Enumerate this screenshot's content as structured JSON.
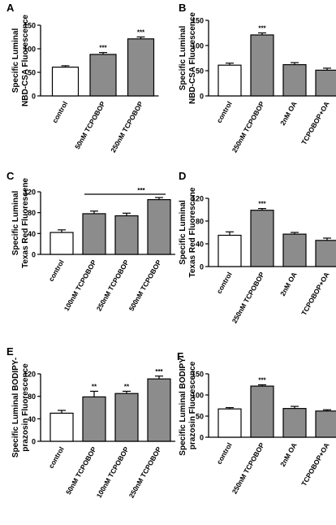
{
  "chart_data": [
    {
      "panel": "A",
      "type": "bar",
      "ylabel": [
        "Specific Luminal",
        "NBD-CSA Fluorescence"
      ],
      "ylim": [
        0,
        150
      ],
      "yticks": [
        0,
        50,
        100,
        150
      ],
      "categories": [
        "control",
        "50nM TCPOBOP",
        "250nM TCPOBOP"
      ],
      "values": [
        61,
        88,
        121
      ],
      "errors": [
        3,
        4,
        4
      ],
      "fills": [
        "white",
        "gray",
        "gray"
      ],
      "significance": [
        "",
        "***",
        "***"
      ]
    },
    {
      "panel": "B",
      "type": "bar",
      "ylabel": [
        "Specific Luminal",
        "NBD-CSA Fluorescence"
      ],
      "ylim": [
        0,
        150
      ],
      "yticks": [
        0,
        50,
        100,
        150
      ],
      "categories": [
        "control",
        "250nM TCPOBOP",
        "2nM OA",
        "TCPOBOP+OA"
      ],
      "values": [
        61,
        121,
        62,
        51
      ],
      "errors": [
        4,
        4,
        4,
        4
      ],
      "fills": [
        "white",
        "gray",
        "gray",
        "gray"
      ],
      "significance": [
        "",
        "***",
        "",
        ""
      ]
    },
    {
      "panel": "C",
      "type": "bar",
      "ylabel": [
        "Specific Luminal",
        "Texas Red Fluorescene"
      ],
      "ylim": [
        0,
        120
      ],
      "yticks": [
        0,
        40,
        80,
        120
      ],
      "categories": [
        "control",
        "100nM TCPOBOP",
        "250nM TCPOBOP",
        "500nM TCPOBOP"
      ],
      "values": [
        42,
        78,
        74,
        105
      ],
      "errors": [
        5,
        5,
        5,
        4
      ],
      "fills": [
        "white",
        "gray",
        "gray",
        "gray"
      ],
      "significance": [
        "",
        "",
        "",
        ""
      ],
      "bracket_label": "***"
    },
    {
      "panel": "D",
      "type": "bar",
      "ylabel": [
        "Specific Luminal",
        "Texas Red Fluorescene"
      ],
      "ylim": [
        0,
        120
      ],
      "yticks": [
        0,
        40,
        80,
        120
      ],
      "categories": [
        "control",
        "250nM TCPOBOP",
        "2nM OA",
        "TCPOBOP+OA"
      ],
      "values": [
        55,
        99,
        57,
        46
      ],
      "errors": [
        6,
        3,
        3,
        4
      ],
      "fills": [
        "white",
        "gray",
        "gray",
        "gray"
      ],
      "significance": [
        "",
        "***",
        "",
        ""
      ]
    },
    {
      "panel": "E",
      "type": "bar",
      "ylabel": [
        "Specific Luminal BODIPY-",
        "prazosin Fluorescence"
      ],
      "ylim": [
        0,
        120
      ],
      "yticks": [
        0,
        40,
        80,
        120
      ],
      "categories": [
        "control",
        "50nM TCPOBOP",
        "100nM TCPOBOP",
        "250nM TCPOBOP"
      ],
      "values": [
        50,
        79,
        85,
        111
      ],
      "errors": [
        5,
        10,
        4,
        5
      ],
      "fills": [
        "white",
        "gray",
        "gray",
        "gray"
      ],
      "significance": [
        "",
        "**",
        "**",
        "***"
      ]
    },
    {
      "panel": "F",
      "type": "bar",
      "ylabel": [
        "Specific Luminal BODIPY-",
        "prazosin Fluorescence"
      ],
      "ylim": [
        0,
        150
      ],
      "yticks": [
        0,
        50,
        100,
        150
      ],
      "categories": [
        "control",
        "250nM TCPOBOP",
        "2nM OA",
        "TCPOBOP+OA"
      ],
      "values": [
        67,
        121,
        68,
        62
      ],
      "errors": [
        3,
        3,
        5,
        3
      ],
      "fills": [
        "white",
        "gray",
        "gray",
        "gray"
      ],
      "significance": [
        "",
        "***",
        "",
        ""
      ]
    }
  ]
}
